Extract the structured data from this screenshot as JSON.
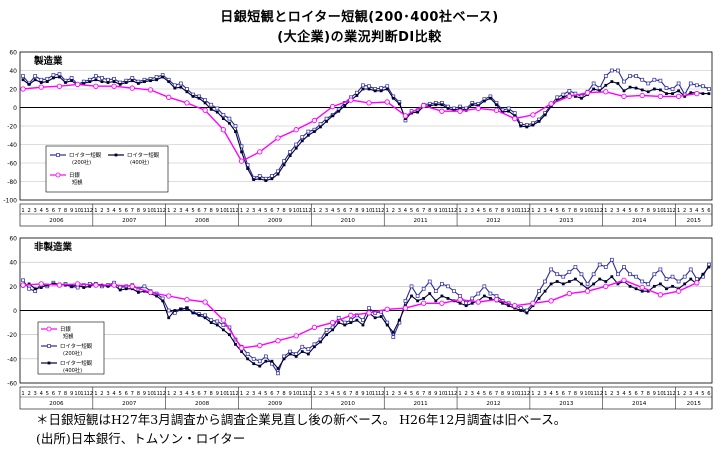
{
  "titles": {
    "line1": "日銀短観とロイター短観(200･400社ベース)",
    "line2": "(大企業)の業況判断DI比較"
  },
  "footer": {
    "note": "＊日銀短観はH27年3月調査から調査企業見直し後の新ベース。 H26年12月調査は旧ベース。",
    "source": "(出所)日本銀行、トムソン・ロイター"
  },
  "colors": {
    "boj": "#ff00ff",
    "reuters200": "#2a2a9a",
    "reuters400": "#000033",
    "grid": "#bbbbbb"
  },
  "chart_data": [
    {
      "type": "line",
      "panel_label": "製造業",
      "ylim": [
        -100,
        60
      ],
      "yticks": [
        60,
        40,
        20,
        0,
        -20,
        -40,
        -60,
        -80,
        -100
      ],
      "years": [
        "2006",
        "2007",
        "2008",
        "2009",
        "2010",
        "2011",
        "2012",
        "2013",
        "2014",
        "2015"
      ],
      "months_per_year": [
        12,
        12,
        12,
        12,
        12,
        12,
        12,
        12,
        12,
        6
      ],
      "legend": {
        "position": "bottom-left",
        "items": [
          {
            "series": 0,
            "line1": "ロイター短観",
            "line2": "(200社)"
          },
          {
            "series": 1,
            "line1": "ロイター短観",
            "line2": "(400社)"
          },
          {
            "series": 2,
            "line1": "日銀",
            "line2": "短観"
          }
        ]
      },
      "series": [
        {
          "name": "ロイター短観(200社)",
          "marker": "open-square",
          "values": [
            34,
            26,
            34,
            30,
            31,
            35,
            36,
            29,
            32,
            25,
            28,
            30,
            34,
            32,
            30,
            31,
            27,
            29,
            32,
            28,
            30,
            31,
            33,
            35,
            30,
            24,
            26,
            20,
            14,
            12,
            8,
            3,
            -1,
            -8,
            -12,
            -20,
            -42,
            -62,
            -76,
            -74,
            -77,
            -74,
            -69,
            -58,
            -48,
            -40,
            -32,
            -26,
            -24,
            -18,
            -12,
            -8,
            -2,
            5,
            11,
            16,
            24,
            23,
            20,
            21,
            23,
            12,
            6,
            -14,
            -4,
            -3,
            3,
            4,
            5,
            5,
            1,
            -1,
            1,
            -1,
            5,
            4,
            9,
            12,
            5,
            -3,
            -1,
            -6,
            -18,
            -19,
            -17,
            -13,
            -6,
            3,
            11,
            14,
            18,
            15,
            12,
            17,
            26,
            21,
            34,
            40,
            40,
            28,
            34,
            34,
            30,
            26,
            30,
            29,
            21,
            20,
            26,
            14,
            26,
            24,
            23,
            20
          ]
        },
        {
          "name": "ロイター短観(400社)",
          "marker": "filled-square",
          "values": [
            30,
            25,
            30,
            27,
            28,
            32,
            33,
            27,
            29,
            24,
            26,
            28,
            30,
            28,
            27,
            28,
            25,
            27,
            29,
            26,
            28,
            29,
            30,
            33,
            28,
            21,
            22,
            17,
            12,
            10,
            5,
            -2,
            -5,
            -12,
            -17,
            -26,
            -48,
            -66,
            -78,
            -77,
            -79,
            -77,
            -72,
            -62,
            -52,
            -44,
            -36,
            -30,
            -26,
            -21,
            -15,
            -9,
            -4,
            2,
            8,
            13,
            20,
            20,
            18,
            18,
            20,
            10,
            4,
            -12,
            -6,
            -5,
            1,
            2,
            3,
            3,
            -1,
            -3,
            -1,
            -3,
            3,
            2,
            7,
            10,
            3,
            -5,
            -4,
            -9,
            -20,
            -21,
            -19,
            -15,
            -8,
            1,
            8,
            11,
            14,
            12,
            10,
            14,
            20,
            18,
            24,
            28,
            26,
            18,
            22,
            21,
            19,
            17,
            20,
            19,
            15,
            15,
            18,
            12,
            16,
            16,
            15,
            15
          ]
        },
        {
          "name": "日銀短観",
          "marker": "open-circle",
          "points": [
            [
              0,
              20
            ],
            [
              3,
              22
            ],
            [
              6,
              23
            ],
            [
              9,
              25
            ],
            [
              12,
              23
            ],
            [
              15,
              23
            ],
            [
              18,
              21
            ],
            [
              21,
              19
            ],
            [
              24,
              11
            ],
            [
              27,
              5
            ],
            [
              30,
              -3
            ],
            [
              33,
              -24
            ],
            [
              36,
              -58
            ],
            [
              39,
              -48
            ],
            [
              42,
              -33
            ],
            [
              45,
              -24
            ],
            [
              48,
              -14
            ],
            [
              51,
              1
            ],
            [
              54,
              8
            ],
            [
              57,
              5
            ],
            [
              60,
              6
            ],
            [
              63,
              -9
            ],
            [
              66,
              2
            ],
            [
              69,
              -4
            ],
            [
              72,
              -4
            ],
            [
              75,
              -1
            ],
            [
              78,
              -3
            ],
            [
              81,
              -12
            ],
            [
              84,
              -8
            ],
            [
              87,
              4
            ],
            [
              90,
              12
            ],
            [
              93,
              16
            ],
            [
              96,
              17
            ],
            [
              99,
              12
            ],
            [
              102,
              13
            ],
            [
              105,
              12
            ],
            [
              108,
              12
            ],
            [
              111,
              15
            ]
          ]
        }
      ]
    },
    {
      "type": "line",
      "panel_label": "非製造業",
      "ylim": [
        -60,
        60
      ],
      "yticks": [
        60,
        40,
        20,
        0,
        -20,
        -40,
        -60
      ],
      "years": [
        "2006",
        "2007",
        "2008",
        "2009",
        "2010",
        "2011",
        "2012",
        "2013",
        "2014",
        "2015"
      ],
      "months_per_year": [
        12,
        12,
        12,
        12,
        12,
        12,
        12,
        12,
        12,
        6
      ],
      "legend": {
        "position": "middle-left",
        "items": [
          {
            "series": 2,
            "line1": "日銀",
            "line2": "短観"
          },
          {
            "series": 0,
            "line1": "ロイター短観",
            "line2": "(200社)"
          },
          {
            "series": 1,
            "line1": "ロイター短観",
            "line2": "(400社)"
          }
        ]
      },
      "series": [
        {
          "name": "ロイター短観(200社)",
          "marker": "open-square",
          "values": [
            25,
            18,
            16,
            22,
            20,
            23,
            21,
            22,
            20,
            19,
            21,
            22,
            22,
            20,
            21,
            23,
            19,
            20,
            21,
            18,
            20,
            16,
            14,
            10,
            0,
            -2,
            1,
            2,
            -1,
            -3,
            -4,
            -8,
            -9,
            -12,
            -14,
            -24,
            -30,
            -36,
            -40,
            -42,
            -38,
            -44,
            -52,
            -38,
            -34,
            -36,
            -30,
            -32,
            -28,
            -24,
            -16,
            -14,
            -6,
            -10,
            -8,
            -4,
            -8,
            2,
            -2,
            -1,
            -10,
            -22,
            -10,
            8,
            20,
            12,
            18,
            24,
            16,
            22,
            20,
            16,
            12,
            6,
            10,
            14,
            20,
            14,
            12,
            8,
            6,
            4,
            2,
            0,
            6,
            16,
            24,
            34,
            30,
            28,
            32,
            36,
            30,
            22,
            30,
            38,
            36,
            42,
            30,
            36,
            30,
            28,
            24,
            22,
            30,
            34,
            26,
            28,
            24,
            28,
            34,
            26,
            28,
            38
          ]
        },
        {
          "name": "ロイター短観(400社)",
          "marker": "filled-square",
          "values": [
            20,
            22,
            18,
            19,
            21,
            22,
            22,
            21,
            20,
            21,
            19,
            20,
            22,
            21,
            20,
            21,
            17,
            18,
            18,
            15,
            16,
            14,
            12,
            8,
            -6,
            0,
            1,
            2,
            -2,
            -4,
            -6,
            -10,
            -12,
            -16,
            -20,
            -28,
            -34,
            -40,
            -44,
            -46,
            -42,
            -42,
            -48,
            -40,
            -36,
            -38,
            -34,
            -36,
            -30,
            -26,
            -20,
            -16,
            -10,
            -12,
            -10,
            -8,
            -12,
            -2,
            -6,
            -5,
            -12,
            -18,
            -8,
            4,
            12,
            8,
            10,
            14,
            8,
            12,
            10,
            8,
            6,
            4,
            6,
            8,
            12,
            10,
            8,
            6,
            4,
            2,
            0,
            -2,
            4,
            10,
            16,
            22,
            24,
            22,
            24,
            26,
            22,
            18,
            22,
            26,
            24,
            28,
            22,
            24,
            20,
            18,
            16,
            16,
            20,
            22,
            18,
            20,
            18,
            22,
            26,
            22,
            30,
            36
          ]
        },
        {
          "name": "日銀短観",
          "marker": "open-circle",
          "points": [
            [
              0,
              21
            ],
            [
              3,
              22
            ],
            [
              6,
              21
            ],
            [
              9,
              22
            ],
            [
              12,
              21
            ],
            [
              15,
              21
            ],
            [
              18,
              20
            ],
            [
              21,
              15
            ],
            [
              24,
              12
            ],
            [
              27,
              9
            ],
            [
              30,
              7
            ],
            [
              33,
              -8
            ],
            [
              36,
              -31
            ],
            [
              39,
              -29
            ],
            [
              42,
              -25
            ],
            [
              45,
              -21
            ],
            [
              48,
              -14
            ],
            [
              51,
              -10
            ],
            [
              54,
              -4
            ],
            [
              57,
              -2
            ],
            [
              60,
              1
            ],
            [
              63,
              2
            ],
            [
              66,
              6
            ],
            [
              69,
              6
            ],
            [
              72,
              9
            ],
            [
              75,
              7
            ],
            [
              78,
              9
            ],
            [
              81,
              4
            ],
            [
              84,
              6
            ],
            [
              87,
              8
            ],
            [
              90,
              14
            ],
            [
              93,
              16
            ],
            [
              96,
              20
            ],
            [
              99,
              25
            ],
            [
              102,
              19
            ],
            [
              105,
              13
            ],
            [
              108,
              16
            ],
            [
              111,
              23
            ]
          ]
        }
      ]
    }
  ]
}
